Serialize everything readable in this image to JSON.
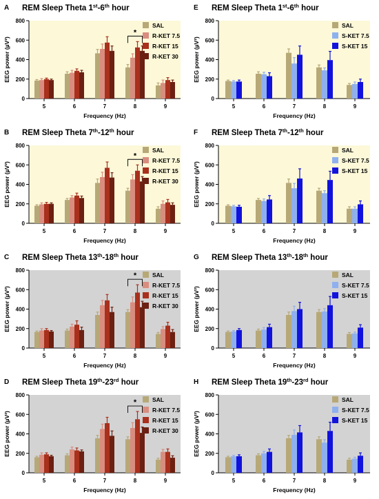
{
  "colors": {
    "yellow_bg": "#fcf8d8",
    "gray_bg": "#d3d3d3",
    "SAL": "#b7a877",
    "R-KET 7.5": "#d98d7f",
    "R-KET 15": "#a8301c",
    "R-KET 30": "#6b2012",
    "S-KET 7.5": "#8fb0ef",
    "S-KET 15": "#1212dd"
  },
  "chart_data": [
    {
      "type": "bar",
      "letter": "A",
      "title": "REM Sleep Theta 1st-6th hour",
      "title_parts": [
        "REM Sleep Theta 1",
        "st",
        "-6",
        "th",
        " hour"
      ],
      "xlabel": "Frequency (Hz)",
      "ylabel": "EEG power (µV²)",
      "categories": [
        "5",
        "6",
        "7",
        "8",
        "9"
      ],
      "ylim": [
        0,
        800
      ],
      "yticks": [
        "0",
        "200",
        "400",
        "600",
        "800"
      ],
      "background": "yellow_bg",
      "sig": {
        "category": "8",
        "label": "*"
      },
      "series": [
        {
          "name": "SAL",
          "values": [
            185,
            255,
            465,
            320,
            135
          ],
          "errors": [
            10,
            20,
            40,
            30,
            25
          ]
        },
        {
          "name": "R-KET 7.5",
          "values": [
            190,
            265,
            510,
            420,
            160
          ],
          "errors": [
            15,
            25,
            50,
            40,
            30
          ]
        },
        {
          "name": "R-KET 15",
          "values": [
            200,
            285,
            575,
            525,
            190
          ],
          "errors": [
            10,
            20,
            60,
            60,
            25
          ]
        },
        {
          "name": "R-KET 30",
          "values": [
            190,
            270,
            490,
            490,
            170
          ],
          "errors": [
            10,
            20,
            50,
            50,
            20
          ]
        }
      ]
    },
    {
      "type": "bar",
      "letter": "B",
      "title": "REM Sleep Theta 7th-12th hour",
      "title_parts": [
        "REM Sleep Theta 7",
        "th",
        "-12",
        "th",
        " hour"
      ],
      "xlabel": "Frequency (Hz)",
      "ylabel": "EEG power (µV²)",
      "categories": [
        "5",
        "6",
        "7",
        "8",
        "9"
      ],
      "ylim": [
        0,
        800
      ],
      "yticks": [
        "0",
        "200",
        "400",
        "600",
        "800"
      ],
      "background": "yellow_bg",
      "sig": {
        "category": "8",
        "label": "*"
      },
      "series": [
        {
          "name": "SAL",
          "values": [
            180,
            240,
            415,
            335,
            150
          ],
          "errors": [
            10,
            15,
            40,
            25,
            20
          ]
        },
        {
          "name": "R-KET 7.5",
          "values": [
            195,
            265,
            475,
            450,
            200
          ],
          "errors": [
            15,
            20,
            50,
            50,
            30
          ]
        },
        {
          "name": "R-KET 15",
          "values": [
            200,
            285,
            570,
            540,
            215
          ],
          "errors": [
            15,
            25,
            60,
            60,
            30
          ]
        },
        {
          "name": "R-KET 30",
          "values": [
            200,
            260,
            470,
            430,
            190
          ],
          "errors": [
            10,
            20,
            50,
            50,
            20
          ]
        }
      ]
    },
    {
      "type": "bar",
      "letter": "C",
      "title": "REM Sleep Theta 13th-18th hour",
      "title_parts": [
        "REM Sleep Theta 13",
        "th",
        "-18",
        "th",
        " hour"
      ],
      "xlabel": "Frequency (Hz)",
      "ylabel": "EEG power (µV²)",
      "categories": [
        "5",
        "6",
        "7",
        "8",
        "9"
      ],
      "ylim": [
        0,
        800
      ],
      "yticks": [
        "0",
        "200",
        "400",
        "600",
        "800"
      ],
      "background": "gray_bg",
      "sig": {
        "category": "8",
        "label": "*"
      },
      "series": [
        {
          "name": "SAL",
          "values": [
            165,
            180,
            340,
            370,
            145
          ],
          "errors": [
            10,
            15,
            30,
            25,
            15
          ]
        },
        {
          "name": "R-KET 7.5",
          "values": [
            180,
            220,
            440,
            470,
            195
          ],
          "errors": [
            20,
            25,
            50,
            55,
            25
          ]
        },
        {
          "name": "R-KET 15",
          "values": [
            185,
            240,
            490,
            570,
            230
          ],
          "errors": [
            15,
            40,
            60,
            80,
            35
          ]
        },
        {
          "name": "R-KET 30",
          "values": [
            170,
            185,
            370,
            420,
            165
          ],
          "errors": [
            10,
            30,
            50,
            60,
            25
          ]
        }
      ]
    },
    {
      "type": "bar",
      "letter": "D",
      "title": "REM Sleep Theta 19th-23rd hour",
      "title_parts": [
        "REM Sleep Theta 19",
        "th",
        "-23",
        "rd",
        " hour"
      ],
      "xlabel": "Frequency (Hz)",
      "ylabel": "EEG power (µV²)",
      "categories": [
        "5",
        "6",
        "7",
        "8",
        "9"
      ],
      "ylim": [
        0,
        800
      ],
      "yticks": [
        "0",
        "200",
        "400",
        "600",
        "800"
      ],
      "background": "gray_bg",
      "sig": {
        "category": "8",
        "label": "*"
      },
      "series": [
        {
          "name": "SAL",
          "values": [
            160,
            180,
            355,
            345,
            135
          ],
          "errors": [
            10,
            15,
            30,
            25,
            15
          ]
        },
        {
          "name": "R-KET 7.5",
          "values": [
            185,
            240,
            450,
            460,
            215
          ],
          "errors": [
            20,
            25,
            50,
            55,
            25
          ]
        },
        {
          "name": "R-KET 15",
          "values": [
            190,
            230,
            510,
            550,
            215
          ],
          "errors": [
            15,
            25,
            60,
            80,
            30
          ]
        },
        {
          "name": "R-KET 30",
          "values": [
            170,
            220,
            380,
            410,
            155
          ],
          "errors": [
            10,
            15,
            50,
            60,
            20
          ]
        }
      ]
    },
    {
      "type": "bar",
      "letter": "E",
      "title": "REM Sleep Theta 1st-6th hour",
      "title_parts": [
        "REM Sleep Theta 1",
        "st",
        "-6",
        "th",
        " hour"
      ],
      "xlabel": "Frequency (Hz)",
      "ylabel": "EEG power (µV²)",
      "categories": [
        "5",
        "6",
        "7",
        "8",
        "9"
      ],
      "ylim": [
        0,
        800
      ],
      "yticks": [
        "0",
        "200",
        "400",
        "600",
        "800"
      ],
      "background": "yellow_bg",
      "series": [
        {
          "name": "SAL",
          "values": [
            180,
            255,
            470,
            320,
            140
          ],
          "errors": [
            10,
            20,
            40,
            25,
            15
          ]
        },
        {
          "name": "S-KET 7.5",
          "values": [
            175,
            250,
            360,
            290,
            150
          ],
          "errors": [
            10,
            20,
            60,
            25,
            20
          ]
        },
        {
          "name": "S-KET 15",
          "values": [
            175,
            230,
            450,
            395,
            170
          ],
          "errors": [
            15,
            35,
            90,
            90,
            30
          ]
        }
      ]
    },
    {
      "type": "bar",
      "letter": "F",
      "title": "REM Sleep Theta 7th-12th hour",
      "title_parts": [
        "REM Sleep Theta 7",
        "th",
        "-12",
        "th",
        " hour"
      ],
      "xlabel": "Frequency (Hz)",
      "ylabel": "EEG power (µV²)",
      "categories": [
        "5",
        "6",
        "7",
        "8",
        "9"
      ],
      "ylim": [
        0,
        800
      ],
      "yticks": [
        "0",
        "200",
        "400",
        "600",
        "800"
      ],
      "background": "yellow_bg",
      "series": [
        {
          "name": "SAL",
          "values": [
            180,
            240,
            415,
            335,
            150
          ],
          "errors": [
            10,
            15,
            40,
            25,
            20
          ]
        },
        {
          "name": "S-KET 7.5",
          "values": [
            175,
            230,
            360,
            310,
            150
          ],
          "errors": [
            10,
            20,
            50,
            25,
            20
          ]
        },
        {
          "name": "S-KET 15",
          "values": [
            170,
            245,
            460,
            445,
            195
          ],
          "errors": [
            15,
            40,
            100,
            90,
            35
          ]
        }
      ]
    },
    {
      "type": "bar",
      "letter": "G",
      "title": "REM Sleep Theta 13th-18th hour",
      "title_parts": [
        "REM Sleep Theta 13",
        "th",
        "-18",
        "th",
        " hour"
      ],
      "xlabel": "Frequency (Hz)",
      "ylabel": "EEG power (µV²)",
      "categories": [
        "5",
        "6",
        "7",
        "8",
        "9"
      ],
      "ylim": [
        0,
        800
      ],
      "yticks": [
        "0",
        "200",
        "400",
        "600",
        "800"
      ],
      "background": "gray_bg",
      "series": [
        {
          "name": "SAL",
          "values": [
            165,
            180,
            340,
            370,
            145
          ],
          "errors": [
            10,
            15,
            30,
            25,
            15
          ]
        },
        {
          "name": "S-KET 7.5",
          "values": [
            170,
            190,
            380,
            375,
            150
          ],
          "errors": [
            10,
            20,
            50,
            30,
            15
          ]
        },
        {
          "name": "S-KET 15",
          "values": [
            185,
            215,
            400,
            440,
            210
          ],
          "errors": [
            15,
            30,
            70,
            90,
            30
          ]
        }
      ]
    },
    {
      "type": "bar",
      "letter": "H",
      "title": "REM Sleep Theta 19th-23rd hour",
      "title_parts": [
        "REM Sleep Theta 19",
        "th",
        "-23",
        "rd",
        " hour"
      ],
      "xlabel": "Frequency (Hz)",
      "ylabel": "EEG power (µV²)",
      "categories": [
        "5",
        "6",
        "7",
        "8",
        "9"
      ],
      "ylim": [
        0,
        800
      ],
      "yticks": [
        "0",
        "200",
        "400",
        "600",
        "800"
      ],
      "background": "gray_bg",
      "series": [
        {
          "name": "SAL",
          "values": [
            160,
            180,
            355,
            345,
            135
          ],
          "errors": [
            10,
            15,
            30,
            25,
            15
          ]
        },
        {
          "name": "S-KET 7.5",
          "values": [
            170,
            200,
            390,
            310,
            145
          ],
          "errors": [
            10,
            20,
            50,
            30,
            15
          ]
        },
        {
          "name": "S-KET 15",
          "values": [
            170,
            215,
            415,
            430,
            175
          ],
          "errors": [
            15,
            30,
            70,
            90,
            30
          ]
        }
      ]
    }
  ]
}
